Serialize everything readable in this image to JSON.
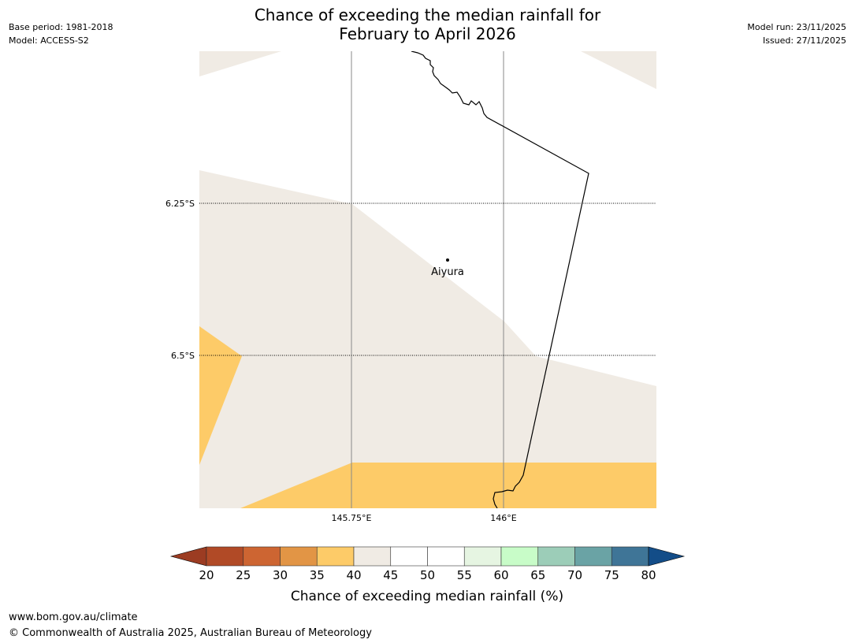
{
  "title": {
    "line1": "Chance of exceeding the median rainfall for",
    "line2": "February to April 2026"
  },
  "meta_left": {
    "base_period": "Base period: 1981-2018",
    "model": "Model: ACCESS-S2"
  },
  "meta_right": {
    "model_run": "Model run: 23/11/2025",
    "issued": "Issued: 27/11/2025"
  },
  "map": {
    "lat_labels": [
      "6.25°S",
      "6.5°S"
    ],
    "lon_labels": [
      "145.75°E",
      "146°E"
    ],
    "place": {
      "name": "Aiyura"
    },
    "colors": {
      "c35_40": "#fdcb68",
      "c40_45": "#f0ebe4",
      "border": "#000000",
      "gridline": "#888888"
    }
  },
  "colorbar": {
    "label": "Chance of exceeding median rainfall (%)",
    "ticks": [
      "20",
      "25",
      "30",
      "35",
      "40",
      "45",
      "50",
      "55",
      "60",
      "65",
      "70",
      "75",
      "80"
    ],
    "colors": [
      "#9c3c22",
      "#b14a26",
      "#cd6532",
      "#e29545",
      "#fdcb68",
      "#f0ebe4",
      "#ffffff",
      "#ffffff",
      "#e6f5e2",
      "#c8fcc8",
      "#9ccdb8",
      "#6aa3a5",
      "#3f7597",
      "#134d88"
    ]
  },
  "footer": {
    "url": "www.bom.gov.au/climate",
    "copyright": "© Commonwealth of Australia 2025, Australian Bureau of Meteorology"
  }
}
